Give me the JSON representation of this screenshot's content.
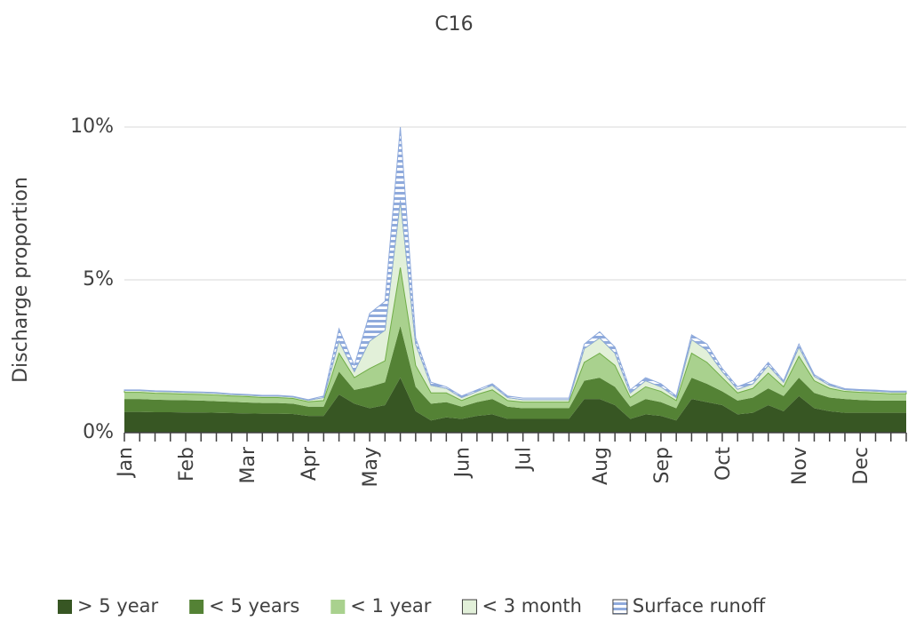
{
  "chart_data": {
    "type": "stacked_area",
    "title": "C16",
    "y_label": "Discharge proportion",
    "categories": [
      "Jan",
      null,
      null,
      null,
      "Feb",
      null,
      null,
      null,
      "Mar",
      null,
      null,
      null,
      "Apr",
      null,
      null,
      null,
      "May",
      null,
      null,
      null,
      null,
      null,
      "Jun",
      null,
      null,
      null,
      "Jul",
      null,
      null,
      null,
      null,
      "Aug",
      null,
      null,
      null,
      "Sep",
      null,
      null,
      null,
      "Oct",
      null,
      null,
      null,
      null,
      "Nov",
      null,
      null,
      null,
      "Dec",
      null,
      null,
      null
    ],
    "series": [
      {
        "name": "> 5 year",
        "color": "#375623",
        "values": [
          0.68,
          0.68,
          0.67,
          0.67,
          0.66,
          0.66,
          0.65,
          0.64,
          0.63,
          0.62,
          0.62,
          0.61,
          0.55,
          0.55,
          1.25,
          0.95,
          0.8,
          0.9,
          1.8,
          0.7,
          0.4,
          0.5,
          0.45,
          0.55,
          0.6,
          0.45,
          0.45,
          0.45,
          0.45,
          0.45,
          1.1,
          1.1,
          0.9,
          0.45,
          0.6,
          0.55,
          0.4,
          1.1,
          1.0,
          0.9,
          0.6,
          0.65,
          0.9,
          0.7,
          1.2,
          0.8,
          0.7,
          0.65,
          0.65,
          0.65,
          0.65,
          0.65
        ]
      },
      {
        "name": "< 5 years",
        "color": "#548235",
        "values": [
          0.42,
          0.42,
          0.41,
          0.4,
          0.4,
          0.39,
          0.38,
          0.37,
          0.36,
          0.35,
          0.35,
          0.34,
          0.3,
          0.3,
          0.75,
          0.45,
          0.7,
          0.75,
          1.7,
          0.8,
          0.55,
          0.5,
          0.4,
          0.45,
          0.5,
          0.4,
          0.35,
          0.35,
          0.35,
          0.35,
          0.6,
          0.7,
          0.6,
          0.4,
          0.5,
          0.45,
          0.4,
          0.7,
          0.6,
          0.45,
          0.45,
          0.5,
          0.55,
          0.5,
          0.6,
          0.5,
          0.45,
          0.45,
          0.42,
          0.4,
          0.4,
          0.4
        ]
      },
      {
        "name": "< 1 year",
        "color": "#a9d18e",
        "values": [
          0.22,
          0.22,
          0.21,
          0.21,
          0.2,
          0.2,
          0.2,
          0.19,
          0.19,
          0.18,
          0.18,
          0.17,
          0.16,
          0.2,
          0.6,
          0.4,
          0.6,
          0.7,
          1.9,
          0.7,
          0.35,
          0.3,
          0.2,
          0.25,
          0.3,
          0.2,
          0.2,
          0.2,
          0.2,
          0.2,
          0.6,
          0.8,
          0.7,
          0.3,
          0.4,
          0.35,
          0.25,
          0.8,
          0.7,
          0.45,
          0.25,
          0.3,
          0.5,
          0.3,
          0.7,
          0.4,
          0.3,
          0.25,
          0.25,
          0.25,
          0.22,
          0.22
        ]
      },
      {
        "name": "< 3 month",
        "color": "#e2f0d9",
        "values": [
          0.06,
          0.06,
          0.06,
          0.06,
          0.06,
          0.06,
          0.06,
          0.05,
          0.05,
          0.05,
          0.05,
          0.05,
          0.05,
          0.1,
          0.4,
          0.2,
          0.9,
          1.0,
          2.2,
          0.7,
          0.25,
          0.15,
          0.1,
          0.1,
          0.15,
          0.1,
          0.08,
          0.08,
          0.08,
          0.08,
          0.45,
          0.5,
          0.4,
          0.15,
          0.2,
          0.15,
          0.1,
          0.45,
          0.4,
          0.2,
          0.12,
          0.15,
          0.25,
          0.15,
          0.3,
          0.15,
          0.1,
          0.06,
          0.06,
          0.06,
          0.06,
          0.06
        ]
      },
      {
        "name": "Surface runoff",
        "color": "#8faadc",
        "values": [
          0.02,
          0.02,
          0.02,
          0.02,
          0.02,
          0.02,
          0.02,
          0.02,
          0.02,
          0.02,
          0.02,
          0.02,
          0.02,
          0.05,
          0.4,
          0.2,
          0.9,
          0.95,
          2.4,
          0.2,
          0.1,
          0.05,
          0.05,
          0.05,
          0.05,
          0.05,
          0.05,
          0.05,
          0.05,
          0.05,
          0.15,
          0.2,
          0.2,
          0.1,
          0.1,
          0.1,
          0.05,
          0.15,
          0.2,
          0.1,
          0.08,
          0.1,
          0.1,
          0.05,
          0.1,
          0.05,
          0.05,
          0.03,
          0.03,
          0.03,
          0.03,
          0.03
        ]
      }
    ],
    "ylim": [
      0,
      10
    ],
    "yticks": [
      {
        "value": 0,
        "label": "0%"
      },
      {
        "value": 5,
        "label": "5%"
      },
      {
        "value": 10,
        "label": "10%"
      }
    ],
    "grid": true,
    "legend": "bottom"
  }
}
